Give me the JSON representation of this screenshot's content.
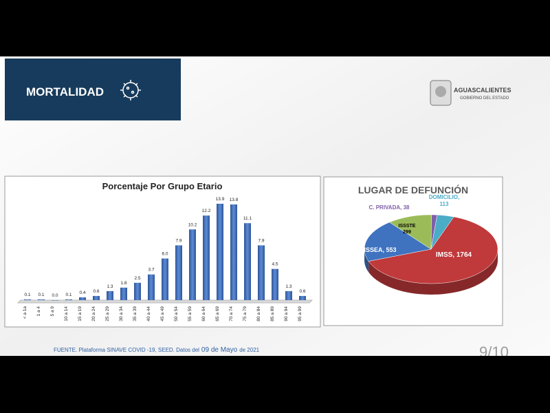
{
  "header": {
    "title": "MORTALIDAD"
  },
  "logo": {
    "name": "AGUASCALIENTES",
    "subtitle": "GOBIERNO DEL ESTADO"
  },
  "chart_data": [
    {
      "type": "bar",
      "title": "Porcentaje Por Grupo Etario",
      "categories": [
        "< a 1a",
        "1 a 4",
        "5 a 9",
        "10 a 14",
        "15 a 19",
        "20 a 24",
        "25 a 29",
        "30 a 34",
        "35 a 39",
        "40 a 44",
        "45 a 49",
        "50 a 54",
        "55 a 59",
        "60 a 64",
        "65 a 69",
        "70 a 74",
        "75 a 79",
        "80 a 84",
        "85 a 89",
        "90 a 94",
        "95 a 99"
      ],
      "values": [
        0.1,
        0.1,
        0.0,
        0.1,
        0.4,
        0.6,
        1.3,
        1.8,
        2.5,
        3.7,
        6.0,
        7.9,
        10.2,
        12.2,
        13.9,
        13.8,
        11.1,
        7.9,
        4.5,
        1.3,
        0.6
      ],
      "value_labels": [
        "0.1",
        "0.1",
        "0.0",
        "0.1",
        "0.4",
        "0.6",
        "1.3",
        "1.8",
        "2.5",
        "3.7",
        "6.0",
        "7.9",
        "10.2",
        "12.2",
        "13.9",
        "13.8",
        "11.1",
        "7.9",
        "4.5",
        "1.3",
        "0.6"
      ],
      "color": "#3f6fb8"
    },
    {
      "type": "pie",
      "title": "LUGAR DE DEFUNCIÓN",
      "categories": [
        "IMSS",
        "ISSEA",
        "ISSSTE",
        "C. PRIVADA",
        "DOMICILIO"
      ],
      "values": [
        1764,
        553,
        299,
        38,
        113
      ],
      "value_labels": [
        "IMSS, 1764",
        "ISSEA, 553",
        "ISSSTE\n299",
        "C. PRIVADA, 38",
        "DOMICILIO,\n113"
      ],
      "colors": [
        "#c0393b",
        "#3f73c0",
        "#9bbb59",
        "#7f5fa8",
        "#4bacc6"
      ]
    }
  ],
  "footer": {
    "source": "FUENTE. Plataforma SINAVE COVID -19, SEED. Datos del",
    "date": "09 de Mayo",
    "year": "de 2021"
  },
  "page": "9/10"
}
